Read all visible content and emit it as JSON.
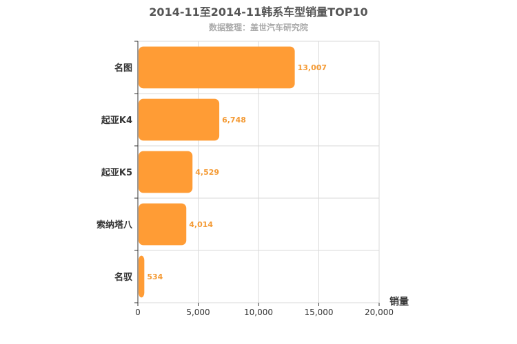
{
  "chart_data": {
    "type": "bar",
    "orientation": "horizontal",
    "title": "2014-11至2014-11韩系车型销量TOP10",
    "subtitle": "数据整理：盖世汽车研究院",
    "categories": [
      "名图",
      "起亚K4",
      "起亚K5",
      "索纳塔八",
      "名驭"
    ],
    "values": [
      13007,
      6748,
      4529,
      4014,
      534
    ],
    "data_labels": [
      "13,007",
      "6,748",
      "4,529",
      "4,014",
      "534"
    ],
    "xlabel": "销量",
    "ylabel": "",
    "xlim": [
      0,
      20000
    ],
    "x_ticks": [
      0,
      5000,
      10000,
      15000,
      20000
    ],
    "x_tick_labels": [
      "0",
      "5,000",
      "10,000",
      "15,000",
      "20,000"
    ],
    "grid": true,
    "bar_color": "#ff9c35",
    "label_color": "#f49b36"
  }
}
